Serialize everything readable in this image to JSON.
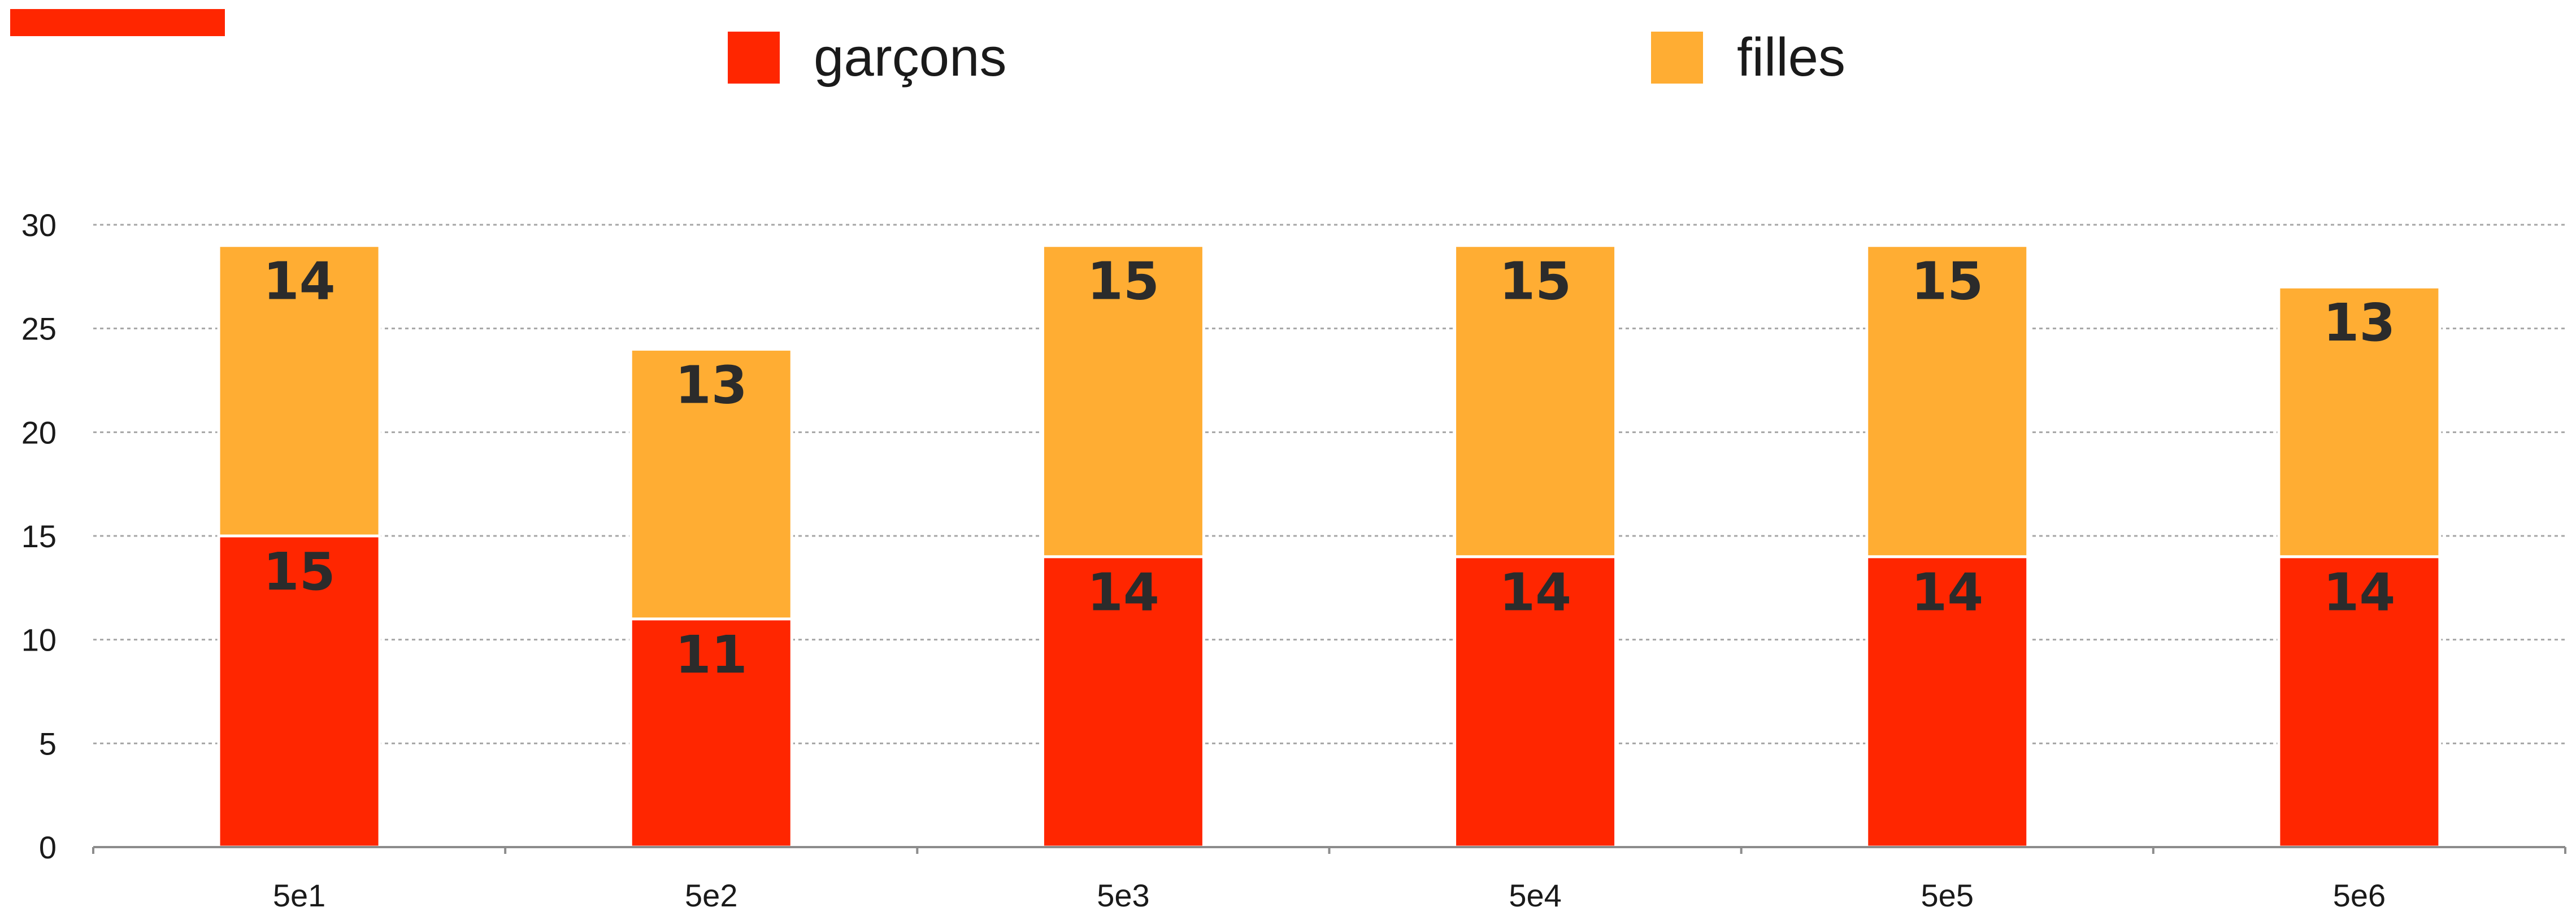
{
  "colors": {
    "garcons": "#ff2600",
    "filles": "#ffad33",
    "accent_bar": "#ff2600"
  },
  "chart_data": {
    "type": "bar",
    "stacked": true,
    "categories": [
      "5e1",
      "5e2",
      "5e3",
      "5e4",
      "5e5",
      "5e6"
    ],
    "series": [
      {
        "name": "garçons",
        "values": [
          15,
          11,
          14,
          14,
          14,
          14
        ]
      },
      {
        "name": "filles",
        "values": [
          14,
          13,
          15,
          15,
          15,
          13
        ]
      }
    ],
    "title": "",
    "xlabel": "",
    "ylabel": "",
    "ylim": [
      0,
      30
    ],
    "yticks": [
      0,
      5,
      10,
      15,
      20,
      25,
      30
    ],
    "grid": true,
    "legend_position": "top"
  }
}
